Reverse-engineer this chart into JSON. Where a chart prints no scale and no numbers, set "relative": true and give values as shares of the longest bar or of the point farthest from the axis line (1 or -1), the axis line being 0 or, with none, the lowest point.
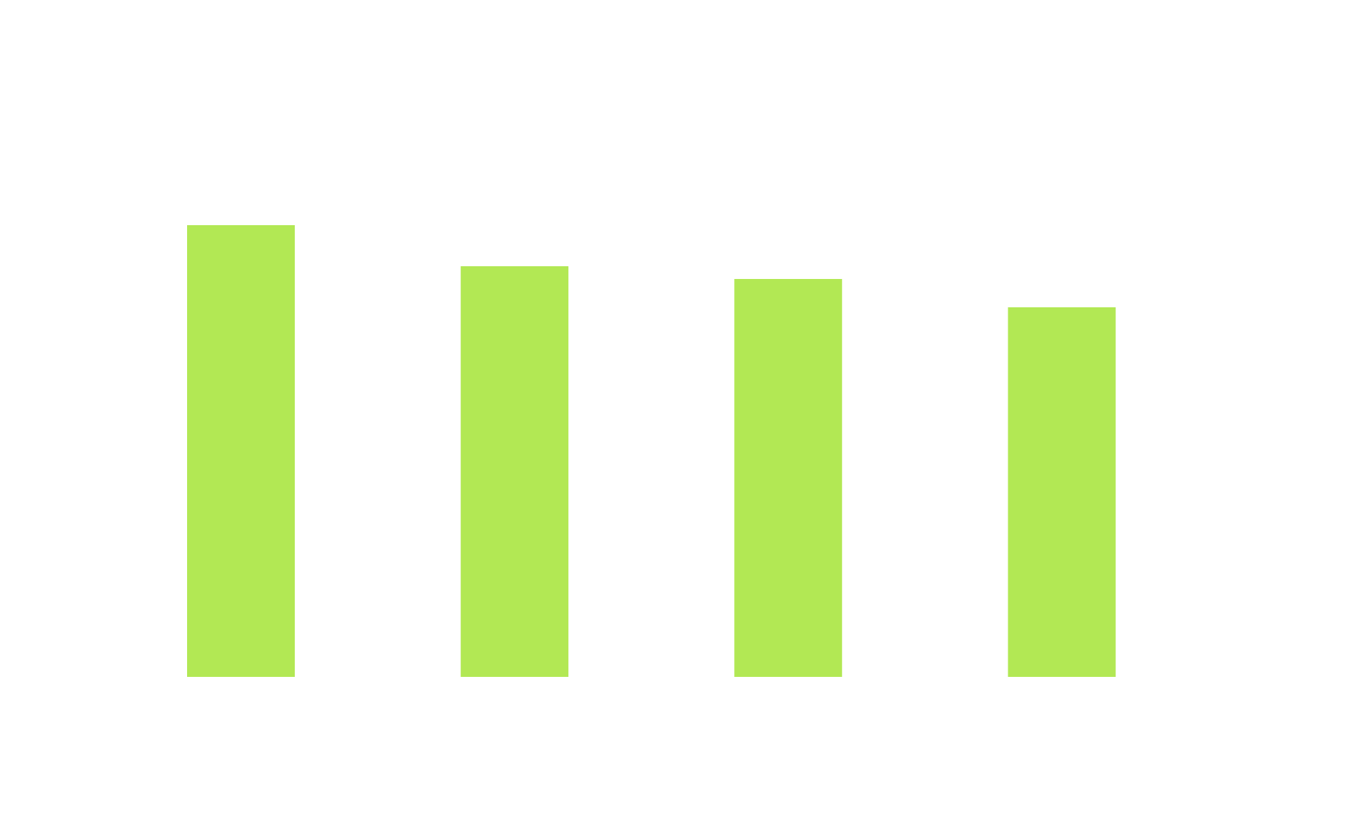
{
  "chart_data": {
    "type": "bar",
    "relative": true,
    "categories": [
      null,
      null,
      null,
      null
    ],
    "values": [
      1,
      0.909,
      0.881,
      0.818
    ],
    "color": "#b2e854"
  }
}
